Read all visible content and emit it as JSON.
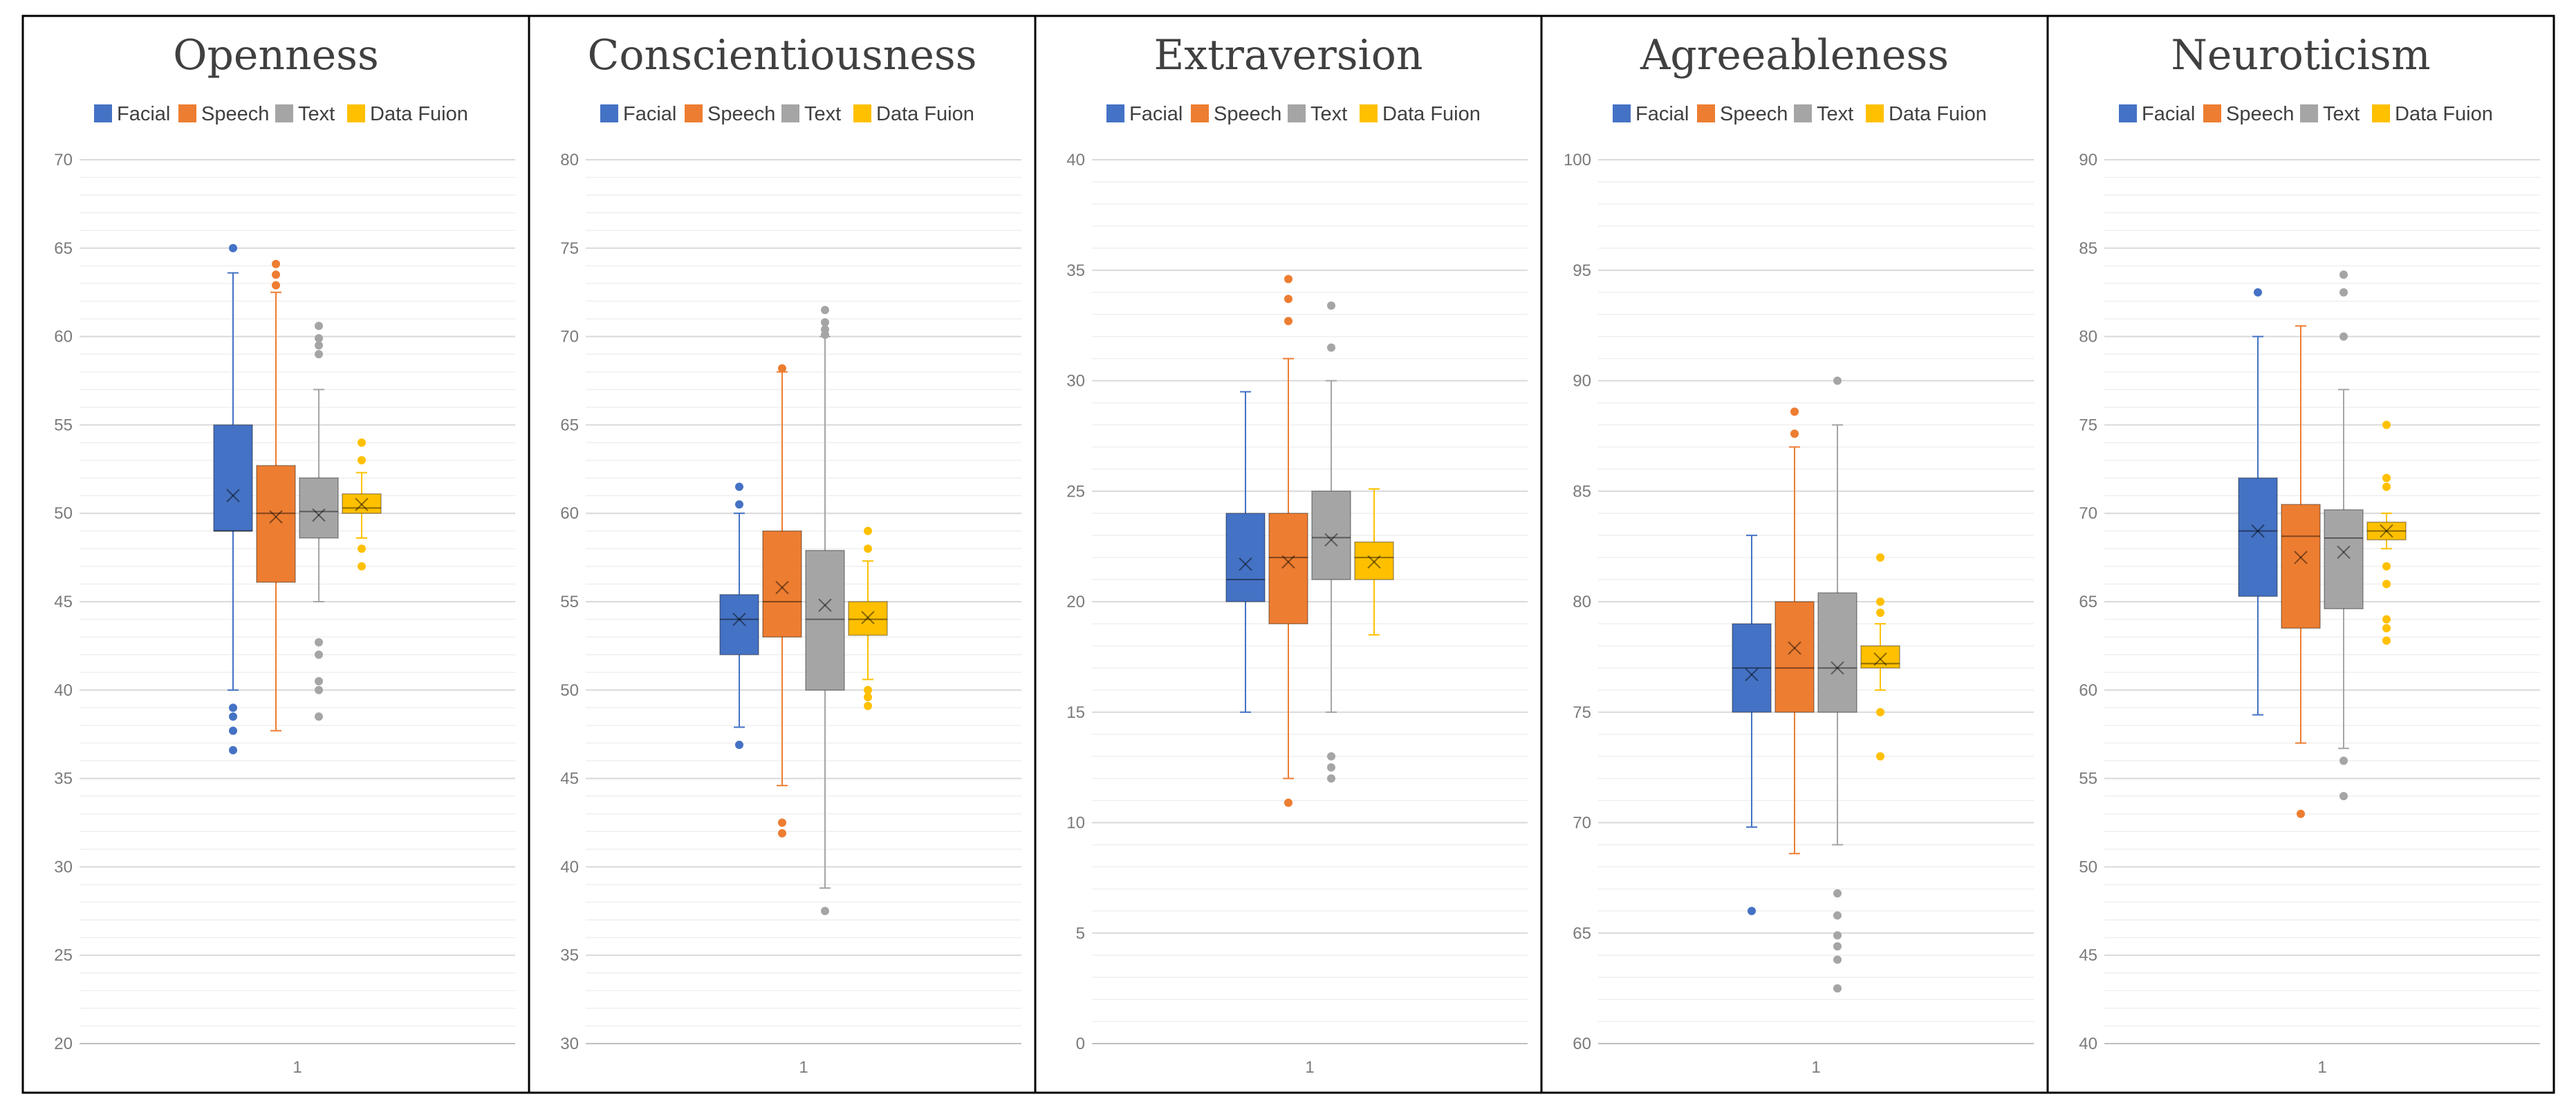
{
  "colors": {
    "facial": "#4472c4",
    "speech": "#ed7d31",
    "text": "#a5a5a5",
    "fusion": "#ffc000",
    "grid_major": "#d9d9d9",
    "grid_minor": "#efefef",
    "frame": "#000000"
  },
  "chart_data": [
    {
      "type": "box",
      "title": "Openness",
      "categories": [
        "1"
      ],
      "legend": [
        "Facial",
        "Speech",
        "Text",
        "Data Fuion"
      ],
      "legend_position": "top",
      "ylim": [
        20,
        70
      ],
      "major_step": 5,
      "minor_step": 1,
      "yticks": [
        20,
        25,
        30,
        35,
        40,
        45,
        50,
        55,
        60,
        65,
        70
      ],
      "series": [
        {
          "name": "Facial",
          "key": "facial",
          "q1": 49,
          "median": 49,
          "q3": 55,
          "mean": 51,
          "whisker_low": 40,
          "whisker_high": 63.6,
          "outliers": [
            65,
            39,
            38.5,
            37.7,
            36.6
          ]
        },
        {
          "name": "Speech",
          "key": "speech",
          "q1": 46.1,
          "median": 50,
          "q3": 52.7,
          "mean": 49.8,
          "whisker_low": 37.7,
          "whisker_high": 62.5,
          "outliers": [
            64.1,
            63.5,
            62.9
          ]
        },
        {
          "name": "Text",
          "key": "text",
          "q1": 48.6,
          "median": 50.1,
          "q3": 52,
          "mean": 49.9,
          "whisker_low": 45,
          "whisker_high": 57,
          "outliers": [
            60.6,
            59.9,
            59.5,
            59,
            42.7,
            42,
            40.5,
            40,
            38.5
          ]
        },
        {
          "name": "Data Fuion",
          "key": "fusion",
          "q1": 50,
          "median": 50.3,
          "q3": 51.1,
          "mean": 50.5,
          "whisker_low": 48.6,
          "whisker_high": 52.3,
          "outliers": [
            54,
            53,
            48,
            47
          ]
        }
      ]
    },
    {
      "type": "box",
      "title": "Conscientiousness",
      "categories": [
        "1"
      ],
      "legend": [
        "Facial",
        "Speech",
        "Text",
        "Data Fuion"
      ],
      "legend_position": "top",
      "ylim": [
        30,
        80
      ],
      "major_step": 5,
      "minor_step": 1,
      "yticks": [
        30,
        35,
        40,
        45,
        50,
        55,
        60,
        65,
        70,
        75,
        80
      ],
      "series": [
        {
          "name": "Facial",
          "key": "facial",
          "q1": 52,
          "median": 54,
          "q3": 55.4,
          "mean": 54,
          "whisker_low": 47.9,
          "whisker_high": 60,
          "outliers": [
            61.5,
            60.5,
            46.9
          ]
        },
        {
          "name": "Speech",
          "key": "speech",
          "q1": 53,
          "median": 55,
          "q3": 59,
          "mean": 55.8,
          "whisker_low": 44.6,
          "whisker_high": 68,
          "outliers": [
            68.2,
            42.5,
            41.9
          ]
        },
        {
          "name": "Text",
          "key": "text",
          "q1": 50,
          "median": 54,
          "q3": 57.9,
          "mean": 54.8,
          "whisker_low": 38.8,
          "whisker_high": 70,
          "outliers": [
            71.5,
            70.8,
            70.4,
            70.1,
            37.5
          ]
        },
        {
          "name": "Data Fuion",
          "key": "fusion",
          "q1": 53.1,
          "median": 54,
          "q3": 55,
          "mean": 54.1,
          "whisker_low": 50.6,
          "whisker_high": 57.3,
          "outliers": [
            59,
            58,
            50,
            49.6,
            49.1
          ]
        }
      ]
    },
    {
      "type": "box",
      "title": "Extraversion",
      "categories": [
        "1"
      ],
      "legend": [
        "Facial",
        "Speech",
        "Text",
        "Data Fuion"
      ],
      "legend_position": "top",
      "ylim": [
        0,
        40
      ],
      "major_step": 5,
      "minor_step": 1,
      "yticks": [
        0,
        5,
        10,
        15,
        20,
        25,
        30,
        35,
        40
      ],
      "series": [
        {
          "name": "Facial",
          "key": "facial",
          "q1": 20,
          "median": 21,
          "q3": 24,
          "mean": 21.7,
          "whisker_low": 15,
          "whisker_high": 29.5,
          "outliers": []
        },
        {
          "name": "Speech",
          "key": "speech",
          "q1": 19,
          "median": 22,
          "q3": 24,
          "mean": 21.8,
          "whisker_low": 12,
          "whisker_high": 31,
          "outliers": [
            34.6,
            33.7,
            32.7,
            10.9
          ]
        },
        {
          "name": "Text",
          "key": "text",
          "q1": 21,
          "median": 22.9,
          "q3": 25,
          "mean": 22.8,
          "whisker_low": 15,
          "whisker_high": 30,
          "outliers": [
            33.4,
            31.5,
            13,
            12.5,
            12
          ]
        },
        {
          "name": "Data Fuion",
          "key": "fusion",
          "q1": 21,
          "median": 22,
          "q3": 22.7,
          "mean": 21.8,
          "whisker_low": 18.5,
          "whisker_high": 25.1,
          "outliers": []
        }
      ]
    },
    {
      "type": "box",
      "title": "Agreeableness",
      "categories": [
        "1"
      ],
      "legend": [
        "Facial",
        "Speech",
        "Text",
        "Data Fuion"
      ],
      "legend_position": "top",
      "ylim": [
        60,
        100
      ],
      "major_step": 5,
      "minor_step": 1,
      "yticks": [
        60,
        65,
        70,
        75,
        80,
        85,
        90,
        95,
        100
      ],
      "series": [
        {
          "name": "Facial",
          "key": "facial",
          "q1": 75,
          "median": 77,
          "q3": 79,
          "mean": 76.7,
          "whisker_low": 69.8,
          "whisker_high": 83,
          "outliers": [
            66
          ]
        },
        {
          "name": "Speech",
          "key": "speech",
          "q1": 75,
          "median": 77,
          "q3": 80,
          "mean": 77.9,
          "whisker_low": 68.6,
          "whisker_high": 87,
          "outliers": [
            88.6,
            87.6
          ]
        },
        {
          "name": "Text",
          "key": "text",
          "q1": 75,
          "median": 77,
          "q3": 80.4,
          "mean": 77,
          "whisker_low": 69,
          "whisker_high": 88,
          "outliers": [
            90,
            66.8,
            65.8,
            64.9,
            64.4,
            63.8,
            62.5
          ]
        },
        {
          "name": "Data Fuion",
          "key": "fusion",
          "q1": 77,
          "median": 77.2,
          "q3": 78,
          "mean": 77.4,
          "whisker_low": 76,
          "whisker_high": 79,
          "outliers": [
            82,
            80,
            79.5,
            75,
            73
          ]
        }
      ]
    },
    {
      "type": "box",
      "title": "Neuroticism",
      "categories": [
        "1"
      ],
      "legend": [
        "Facial",
        "Speech",
        "Text",
        "Data Fuion"
      ],
      "legend_position": "top",
      "ylim": [
        40,
        90
      ],
      "major_step": 5,
      "minor_step": 1,
      "yticks": [
        40,
        45,
        50,
        55,
        60,
        65,
        70,
        75,
        80,
        85,
        90
      ],
      "series": [
        {
          "name": "Facial",
          "key": "facial",
          "q1": 65.3,
          "median": 69,
          "q3": 72,
          "mean": 69,
          "whisker_low": 58.6,
          "whisker_high": 80,
          "outliers": [
            82.5
          ]
        },
        {
          "name": "Speech",
          "key": "speech",
          "q1": 63.5,
          "median": 68.7,
          "q3": 70.5,
          "mean": 67.5,
          "whisker_low": 57,
          "whisker_high": 80.6,
          "outliers": [
            53
          ]
        },
        {
          "name": "Text",
          "key": "text",
          "q1": 64.6,
          "median": 68.6,
          "q3": 70.2,
          "mean": 67.8,
          "whisker_low": 56.7,
          "whisker_high": 77,
          "outliers": [
            83.5,
            82.5,
            80,
            56,
            54
          ]
        },
        {
          "name": "Data Fuion",
          "key": "fusion",
          "q1": 68.5,
          "median": 69,
          "q3": 69.5,
          "mean": 69,
          "whisker_low": 68,
          "whisker_high": 70,
          "outliers": [
            75,
            72,
            71.5,
            67,
            66,
            64,
            63.5,
            62.8
          ]
        }
      ]
    }
  ]
}
